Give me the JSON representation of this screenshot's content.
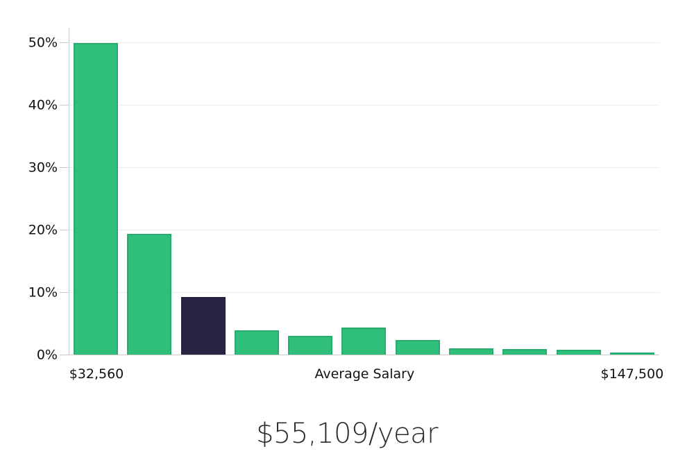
{
  "chart_data": {
    "type": "bar",
    "title": "$55,109/year",
    "values": [
      50,
      19.5,
      9.3,
      4.0,
      3.1,
      4.5,
      2.4,
      1.1,
      1.0,
      0.9,
      0.5
    ],
    "highlighted_bar_index": 2,
    "bar_color": "#2ebf7b",
    "highlight_color": "#2a2444",
    "ylim": [
      0,
      50
    ],
    "y_ticks": [
      {
        "value": 0,
        "label": "0%"
      },
      {
        "value": 10,
        "label": "10%"
      },
      {
        "value": 20,
        "label": "20%"
      },
      {
        "value": 30,
        "label": "30%"
      },
      {
        "value": 40,
        "label": "40%"
      },
      {
        "value": 50,
        "label": "50%"
      }
    ],
    "x_axis_labels": [
      {
        "text": "$32,560"
      },
      {
        "text": "Average Salary"
      },
      {
        "text": "$147,500"
      }
    ],
    "grid": true,
    "legend": "none"
  }
}
